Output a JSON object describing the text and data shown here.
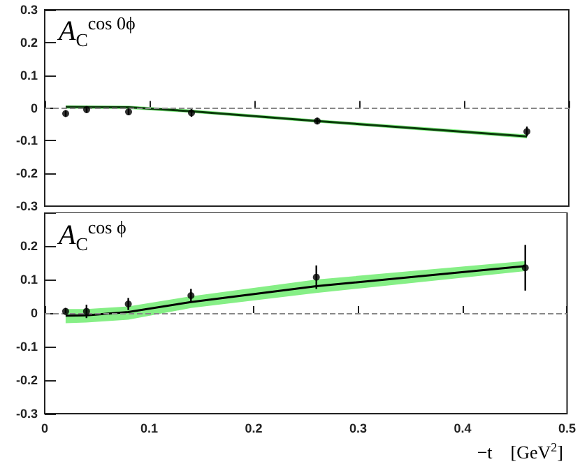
{
  "chart_data": [
    {
      "type": "scatter",
      "annotations": [
        "A$_{C}$$^{cos 0ϕ}$"
      ],
      "x": [
        0.02,
        0.04,
        0.08,
        0.14,
        0.26,
        0.46
      ],
      "xlim": [
        0,
        0.5
      ],
      "xticks": [
        0,
        0.1,
        0.2,
        0.3,
        0.4,
        0.5
      ],
      "ylim": [
        -0.3,
        0.3
      ],
      "yticks": [
        -0.3,
        -0.2,
        -0.1,
        0,
        0.1,
        0.2,
        0.3
      ],
      "tick_labels": "y",
      "grid": false,
      "series": [
        {
          "type": "line",
          "marker": "none",
          "color": "#0a3a0a",
          "x": [
            0.02,
            0.08,
            0.14,
            0.26,
            0.46
          ],
          "values": [
            0.003,
            0.002,
            -0.01,
            -0.04,
            -0.087
          ],
          "lower": [
            -0.002,
            -0.003,
            -0.015,
            -0.045,
            -0.093
          ],
          "upper": [
            0.008,
            0.007,
            -0.005,
            -0.035,
            -0.081
          ]
        },
        {
          "marker": "circle",
          "color": "#000000",
          "values": [
            -0.017,
            -0.005,
            -0.012,
            -0.015,
            -0.04,
            -0.072
          ],
          "errors": [
            0.01,
            0.01,
            0.01,
            0.012,
            0.01,
            0.015
          ]
        }
      ],
      "ref_lines": [
        {
          "axis": "y",
          "value": 0,
          "color": "#888888",
          "line_style": "dashed"
        }
      ]
    },
    {
      "type": "scatter",
      "annotations": [
        "A$_{C}$$^{cos ϕ}$"
      ],
      "xlabel": "−t    [GeV$^{2}$]",
      "x": [
        0.02,
        0.04,
        0.08,
        0.14,
        0.26,
        0.46
      ],
      "xlim": [
        0,
        0.5
      ],
      "xticks": [
        0,
        0.1,
        0.2,
        0.3,
        0.4,
        0.5
      ],
      "ylim": [
        -0.3,
        0.3
      ],
      "yticks": [
        -0.3,
        -0.2,
        -0.1,
        0,
        0.1,
        0.2,
        {
          "value": 0.3,
          "label": null
        }
      ],
      "grid": false,
      "series": [
        {
          "type": "line",
          "marker": "none",
          "color": "#000000",
          "x": [
            0.02,
            0.04,
            0.08,
            0.14,
            0.26,
            0.46
          ],
          "values": [
            -0.008,
            -0.007,
            0.003,
            0.033,
            0.08,
            0.14
          ],
          "lower": [
            -0.03,
            -0.028,
            -0.02,
            0.015,
            0.06,
            0.125
          ],
          "upper": [
            0.012,
            0.012,
            0.02,
            0.05,
            0.1,
            0.155
          ]
        },
        {
          "marker": "circle",
          "color": "#000000",
          "values": [
            0.005,
            0.005,
            0.027,
            0.052,
            0.107,
            0.135
          ],
          "errors": [
            0.01,
            0.02,
            0.018,
            0.02,
            0.035,
            0.068
          ]
        }
      ],
      "ref_lines": [
        {
          "axis": "y",
          "value": 0,
          "color": "#888888",
          "line_style": "dashed"
        }
      ]
    }
  ]
}
